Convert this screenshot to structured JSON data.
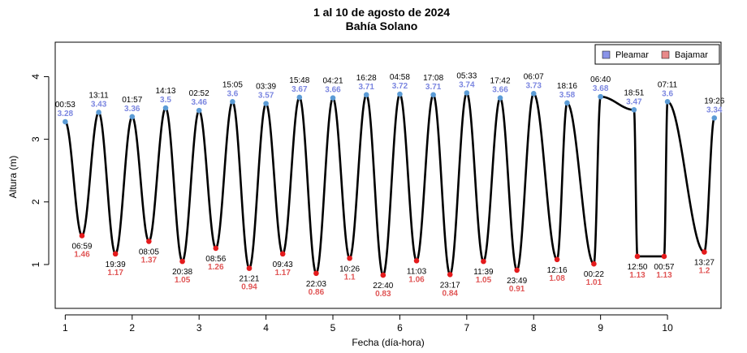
{
  "chart_data": {
    "type": "line",
    "title": "1 al 10 de agosto de 2024",
    "subtitle": "Bahía Solano",
    "xlabel": "Fecha (día-hora)",
    "ylabel": "Altura (m)",
    "xlim": [
      0.85,
      10.8
    ],
    "ylim": [
      0.3,
      4.55
    ],
    "x_ticks": [
      1,
      2,
      3,
      4,
      5,
      6,
      7,
      8,
      9,
      10
    ],
    "y_ticks": [
      1,
      2,
      3,
      4
    ],
    "grid": false,
    "legend_position": "top-right",
    "colors": {
      "high": "#7b86e0",
      "low": "#e05555",
      "line": "#000000",
      "high_point": "#5b9bd5",
      "low_point": "#e41a1c"
    },
    "series": [
      {
        "name": "Pleamar",
        "points": [
          {
            "x": 1.0,
            "y": 3.28,
            "time": "00:53",
            "label": "3.28"
          },
          {
            "x": 1.5,
            "y": 3.43,
            "time": "13:11",
            "label": "3.43"
          },
          {
            "x": 2.0,
            "y": 3.36,
            "time": "01:57",
            "label": "3.36"
          },
          {
            "x": 2.5,
            "y": 3.5,
            "time": "14:13",
            "label": "3.5"
          },
          {
            "x": 3.0,
            "y": 3.46,
            "time": "02:52",
            "label": "3.46"
          },
          {
            "x": 3.5,
            "y": 3.6,
            "time": "15:05",
            "label": "3.6"
          },
          {
            "x": 4.0,
            "y": 3.57,
            "time": "03:39",
            "label": "3.57"
          },
          {
            "x": 4.5,
            "y": 3.67,
            "time": "15:48",
            "label": "3.67"
          },
          {
            "x": 5.0,
            "y": 3.66,
            "time": "04:21",
            "label": "3.66"
          },
          {
            "x": 5.5,
            "y": 3.71,
            "time": "16:28",
            "label": "3.71"
          },
          {
            "x": 6.0,
            "y": 3.72,
            "time": "04:58",
            "label": "3.72"
          },
          {
            "x": 6.5,
            "y": 3.71,
            "time": "17:08",
            "label": "3.71"
          },
          {
            "x": 7.0,
            "y": 3.74,
            "time": "05:33",
            "label": "3.74"
          },
          {
            "x": 7.5,
            "y": 3.66,
            "time": "17:42",
            "label": "3.66"
          },
          {
            "x": 8.0,
            "y": 3.73,
            "time": "06:07",
            "label": "3.73"
          },
          {
            "x": 8.5,
            "y": 3.58,
            "time": "18:16",
            "label": "3.58"
          },
          {
            "x": 9.0,
            "y": 3.68,
            "time": "06:40",
            "label": "3.68"
          },
          {
            "x": 9.5,
            "y": 3.47,
            "time": "18:51",
            "label": "3.47"
          },
          {
            "x": 10.0,
            "y": 3.6,
            "time": "07:11",
            "label": "3.6"
          },
          {
            "x": 10.7,
            "y": 3.34,
            "time": "19:26",
            "label": "3.34"
          }
        ]
      },
      {
        "name": "Bajamar",
        "points": [
          {
            "x": 1.25,
            "y": 1.46,
            "time": "06:59",
            "label": "1.46"
          },
          {
            "x": 1.75,
            "y": 1.17,
            "time": "19:39",
            "label": "1.17"
          },
          {
            "x": 2.25,
            "y": 1.37,
            "time": "08:05",
            "label": "1.37"
          },
          {
            "x": 2.75,
            "y": 1.05,
            "time": "20:38",
            "label": "1.05"
          },
          {
            "x": 3.25,
            "y": 1.26,
            "time": "08:56",
            "label": "1.26"
          },
          {
            "x": 3.75,
            "y": 0.94,
            "time": "21:21",
            "label": "0.94"
          },
          {
            "x": 4.25,
            "y": 1.17,
            "time": "09:43",
            "label": "1.17"
          },
          {
            "x": 4.75,
            "y": 0.86,
            "time": "22:03",
            "label": "0.86"
          },
          {
            "x": 5.25,
            "y": 1.1,
            "time": "10:26",
            "label": "1.1"
          },
          {
            "x": 5.75,
            "y": 0.83,
            "time": "22:40",
            "label": "0.83"
          },
          {
            "x": 6.25,
            "y": 1.06,
            "time": "11:03",
            "label": "1.06"
          },
          {
            "x": 6.75,
            "y": 0.84,
            "time": "23:17",
            "label": "0.84"
          },
          {
            "x": 7.25,
            "y": 1.05,
            "time": "11:39",
            "label": "1.05"
          },
          {
            "x": 7.75,
            "y": 0.91,
            "time": "23:49",
            "label": "0.91"
          },
          {
            "x": 8.35,
            "y": 1.08,
            "time": "12:16",
            "label": "1.08"
          },
          {
            "x": 8.9,
            "y": 1.01,
            "time": "00:22",
            "label": "1.01"
          },
          {
            "x": 9.55,
            "y": 1.13,
            "time": "12:50",
            "label": "1.13"
          },
          {
            "x": 9.95,
            "y": 1.13,
            "time": "00:57",
            "label": "1.13"
          },
          {
            "x": 10.55,
            "y": 1.2,
            "time": "13:27",
            "label": "1.2"
          }
        ]
      }
    ]
  }
}
